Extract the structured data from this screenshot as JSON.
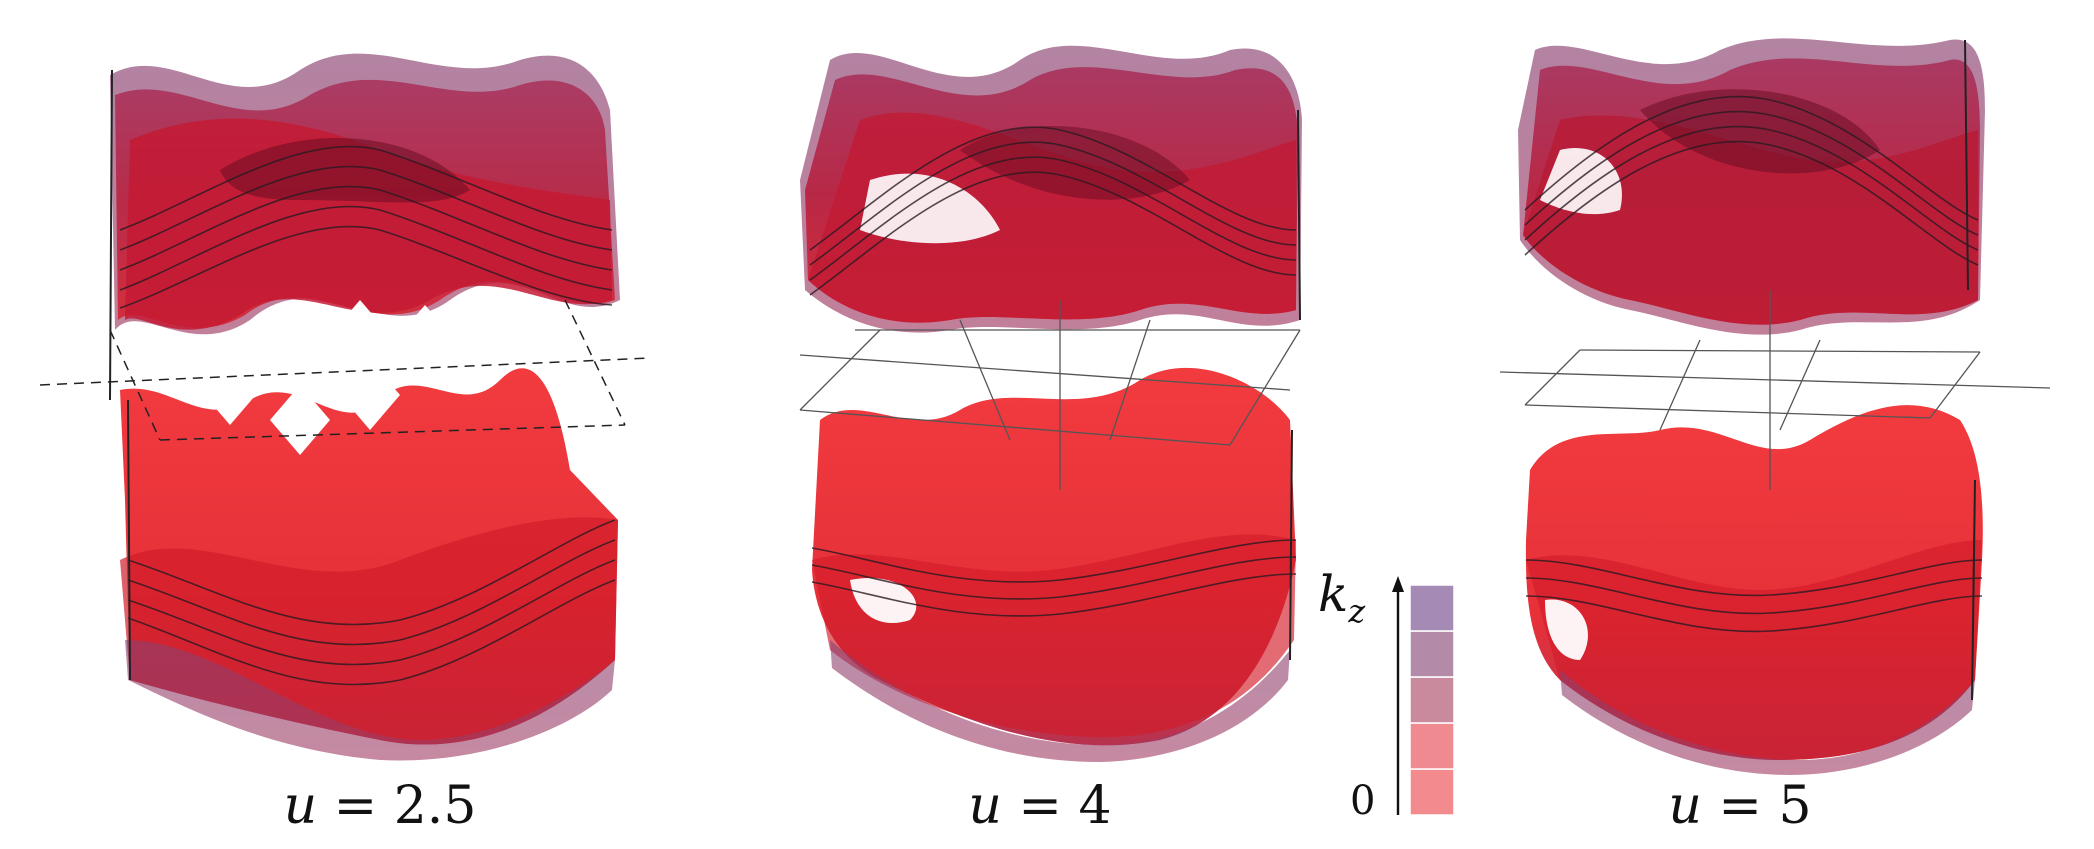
{
  "panels": [
    {
      "label": "u = 2.5",
      "var": "u",
      "value": "2.5"
    },
    {
      "label": "u = 4",
      "var": "u",
      "value": "4"
    },
    {
      "label": "u = 5",
      "var": "u",
      "value": "5"
    }
  ],
  "colorbar": {
    "axis_label": "k",
    "axis_sub": "z",
    "bottom_label": "0",
    "colors": [
      "#f28a8e",
      "#ee8a90",
      "#c98a9e",
      "#b38aa8",
      "#a68ab6"
    ]
  },
  "colors": {
    "surface_main": "#e8222a",
    "surface_dark": "#8a1030",
    "edge": "#5a5a82",
    "line": "#222222"
  }
}
